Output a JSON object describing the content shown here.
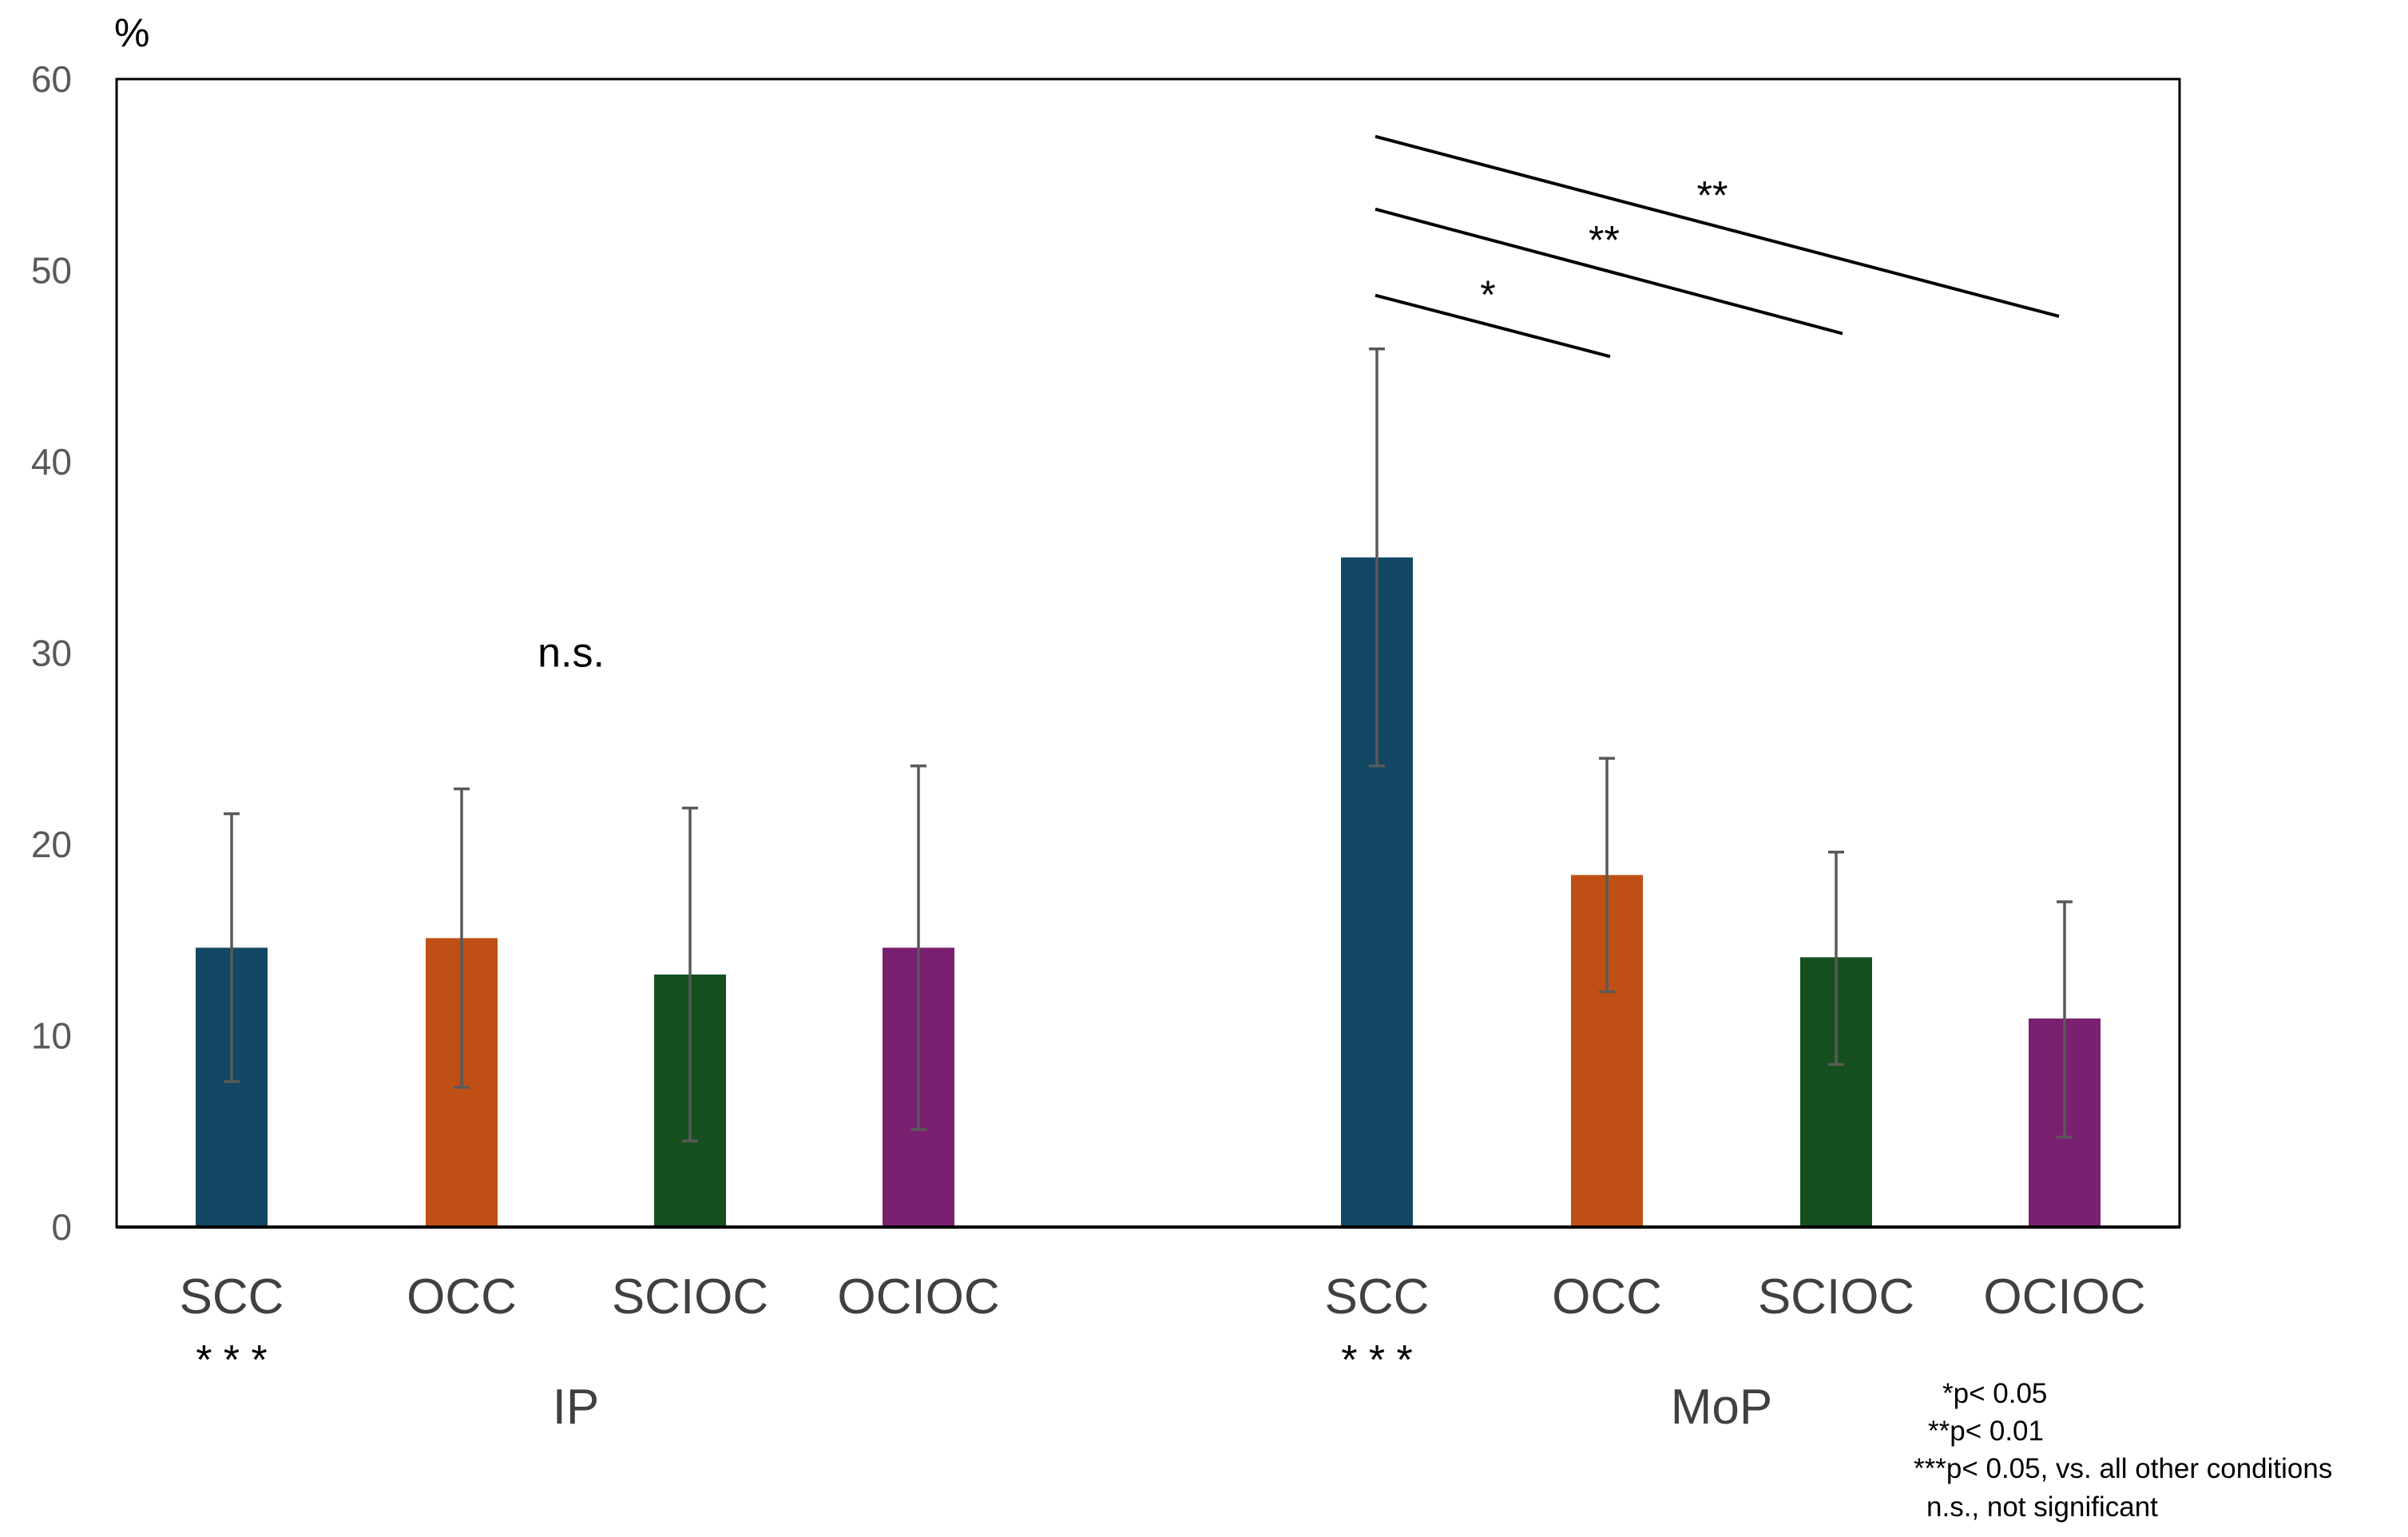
{
  "chart_data": {
    "type": "bar",
    "y_unit": "%",
    "ylim": [
      0,
      60
    ],
    "yticks": [
      "0",
      "10",
      "20",
      "30",
      "40",
      "50",
      "60"
    ],
    "grid": false,
    "groups": [
      {
        "name": "IP",
        "categories": [
          "SCC",
          "OCC",
          "SCIOC",
          "OCIOC"
        ],
        "values": [
          14.6,
          15.1,
          13.2,
          14.6
        ],
        "err_low": [
          7.6,
          7.3,
          4.5,
          5.1
        ],
        "err_high": [
          21.6,
          22.9,
          21.9,
          24.1
        ],
        "stars": [
          "* * *",
          "",
          "",
          ""
        ],
        "annotation": "n.s."
      },
      {
        "name": "MoP",
        "categories": [
          "SCC",
          "OCC",
          "SCIOC",
          "OCIOC"
        ],
        "values": [
          35.0,
          18.4,
          14.1,
          10.9
        ],
        "err_low": [
          24.1,
          12.3,
          8.5,
          4.7
        ],
        "err_high": [
          45.9,
          24.5,
          19.6,
          17.0
        ],
        "stars": [
          "* * *",
          "",
          "",
          ""
        ],
        "annotation": ""
      }
    ],
    "bar_colors": [
      "#124864",
      "#C04F15",
      "#17501F",
      "#7A2070"
    ],
    "significance": [
      {
        "label": "*",
        "y_start": 48.7,
        "y_end": 45.5
      },
      {
        "label": "**",
        "y_start": 53.2,
        "y_end": 46.7
      },
      {
        "label": "**",
        "y_start": 57.0,
        "y_end": 47.6
      }
    ],
    "legend_notes": [
      "*p< 0.05",
      "**p< 0.01",
      "***p< 0.05, vs. all other conditions",
      "n.s., not significant"
    ]
  }
}
